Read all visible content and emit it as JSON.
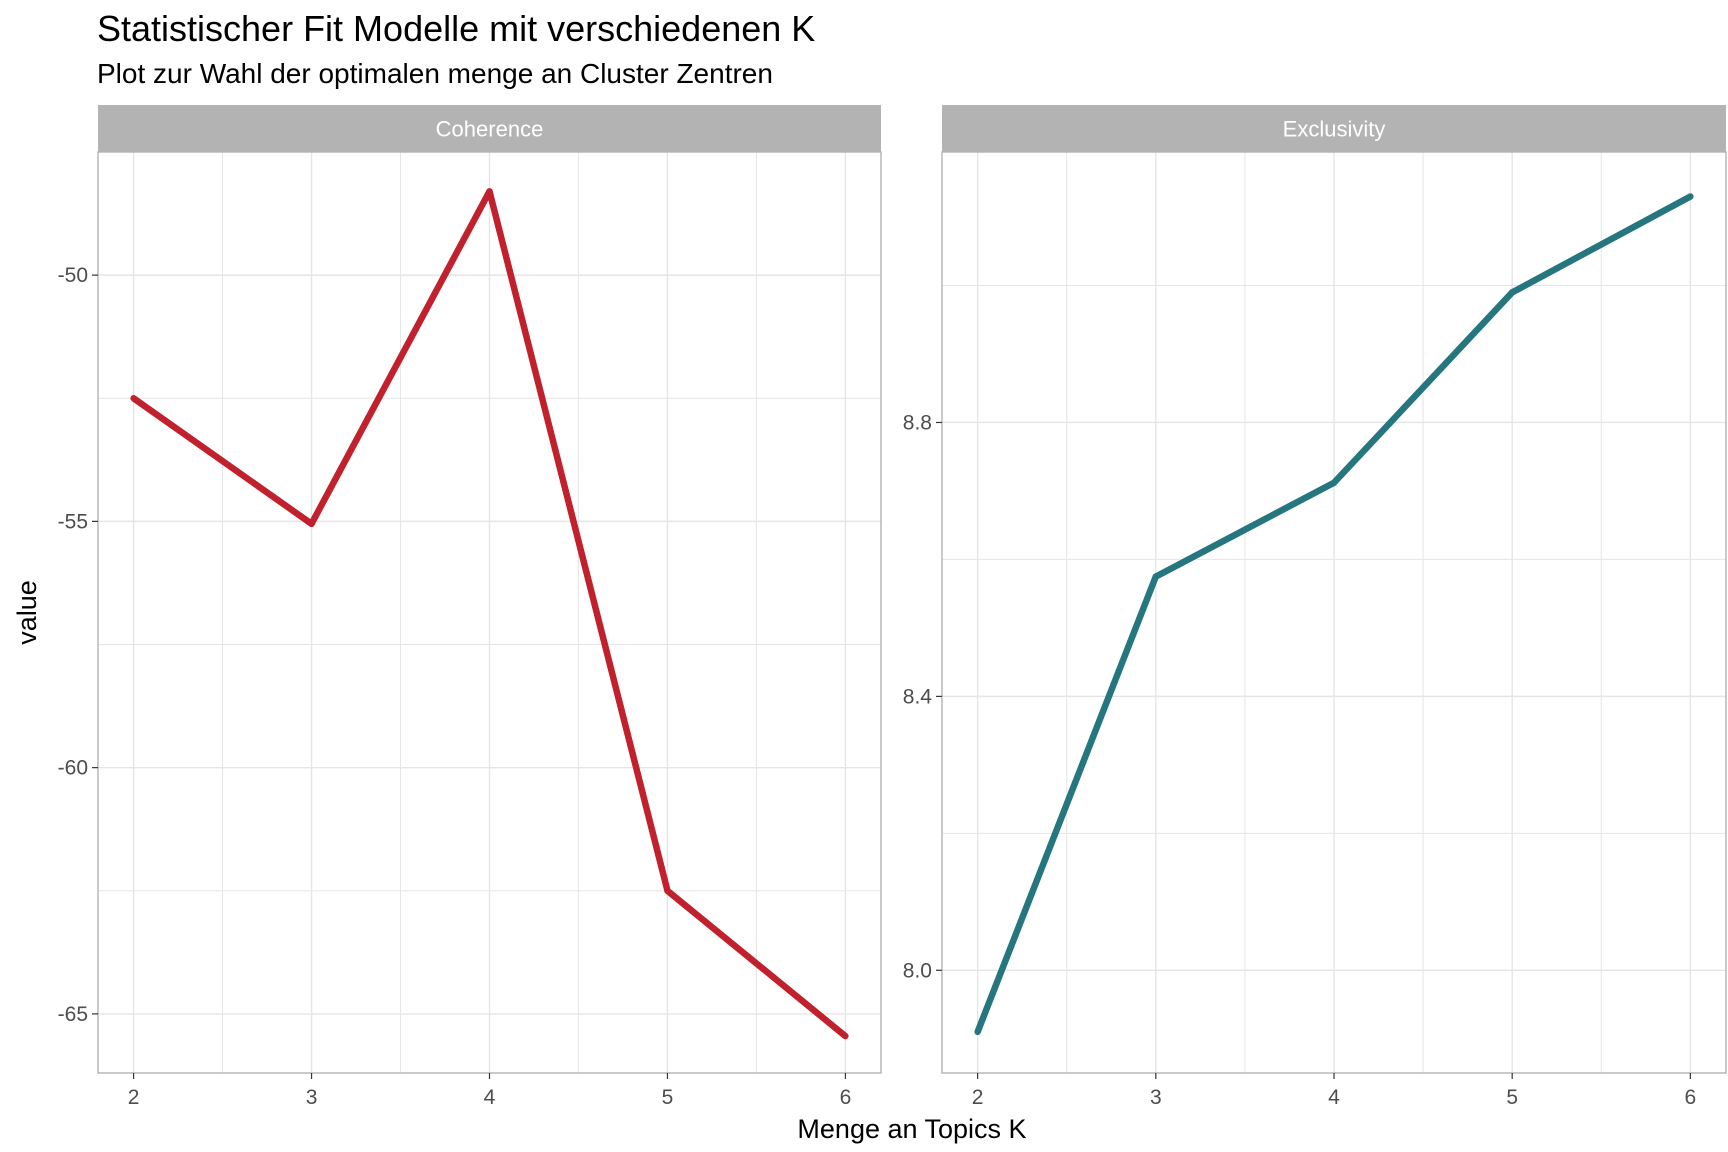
{
  "title": "Statistischer Fit Modelle mit verschiedenen K",
  "subtitle": "Plot zur Wahl der optimalen menge an Cluster Zentren",
  "colors": {
    "coherence": "#c1202d",
    "exclusivity": "#25767f",
    "strip": "#b3b3b3",
    "grid": "#e5e5e5",
    "panel_border": "#b3b3b3"
  },
  "chart_data": {
    "type": "line",
    "xlabel": "Menge an Topics K",
    "ylabel": "value",
    "x": [
      2,
      3,
      4,
      5,
      6
    ],
    "facet_scales": "free_y",
    "grid": true,
    "legend": "none",
    "panels": [
      {
        "name": "Coherence",
        "values": [
          -52.5,
          -55.05,
          -48.3,
          -62.5,
          -65.45
        ],
        "ylim": [
          -66.2,
          -47.5
        ],
        "yticks": [
          -50,
          -55,
          -60,
          -65
        ],
        "ytick_labels": [
          "-50",
          "-55",
          "-60",
          "-65"
        ],
        "yminor": [
          -52.5,
          -57.5,
          -62.5
        ],
        "color": "#c1202d"
      },
      {
        "name": "Exclusivity",
        "values": [
          7.91,
          8.575,
          8.712,
          8.99,
          9.13
        ],
        "ylim": [
          7.85,
          9.195
        ],
        "yticks": [
          8.0,
          8.4,
          8.8
        ],
        "ytick_labels": [
          "8.0",
          "8.4",
          "8.8"
        ],
        "yminor": [
          8.2,
          8.6,
          9.0
        ],
        "color": "#25767f"
      }
    ],
    "xticks": [
      2,
      3,
      4,
      5,
      6
    ],
    "xtick_labels": [
      "2",
      "3",
      "4",
      "5",
      "6"
    ],
    "xminor": [
      2.5,
      3.5,
      4.5,
      5.5
    ],
    "xlim": [
      1.8,
      6.2
    ]
  }
}
